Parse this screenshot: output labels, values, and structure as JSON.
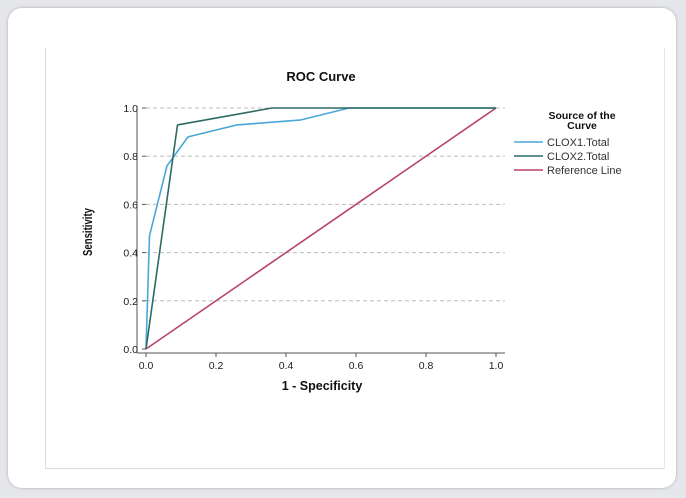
{
  "chart_data": {
    "type": "line",
    "title": "ROC Curve",
    "xlabel": "1 - Specificity",
    "ylabel": "Sensitivity",
    "xlim": [
      0,
      1
    ],
    "ylim": [
      0,
      1
    ],
    "x_ticks": [
      "0.0",
      "0.2",
      "0.4",
      "0.6",
      "0.8",
      "1.0"
    ],
    "y_ticks": [
      "0.0",
      "0.2",
      "0.4",
      "0.6",
      "0.8",
      "1.0"
    ],
    "grid": "horizontal dashed",
    "legend": {
      "title_line1": "Source of the",
      "title_line2": "Curve",
      "placement": "right"
    },
    "series": [
      {
        "name": "CLOX1.Total",
        "color": "#4aa7d8",
        "points": [
          [
            0.0,
            0.0
          ],
          [
            0.01,
            0.47
          ],
          [
            0.06,
            0.76
          ],
          [
            0.12,
            0.88
          ],
          [
            0.26,
            0.93
          ],
          [
            0.44,
            0.95
          ],
          [
            0.58,
            1.0
          ],
          [
            1.0,
            1.0
          ]
        ]
      },
      {
        "name": "CLOX2.Total",
        "color": "#2d6b63",
        "points": [
          [
            0.0,
            0.0
          ],
          [
            0.09,
            0.93
          ],
          [
            0.36,
            1.0
          ],
          [
            1.0,
            1.0
          ]
        ]
      },
      {
        "name": "Reference Line",
        "color": "#b84466",
        "points": [
          [
            0.0,
            0.0
          ],
          [
            1.0,
            1.0
          ]
        ]
      }
    ]
  }
}
